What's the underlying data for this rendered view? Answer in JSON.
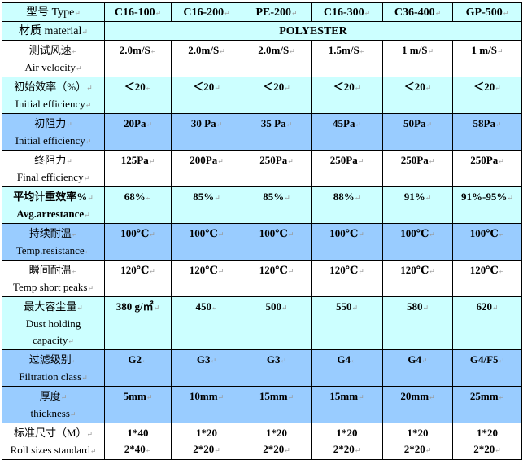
{
  "header": {
    "label": "型号  Type",
    "models": [
      "C16-100",
      "C16-200",
      "PE-200",
      "C16-300",
      "C36-400",
      "GP-500"
    ]
  },
  "material": {
    "label": "材质  material",
    "value": "POLYESTER"
  },
  "rows": [
    {
      "cn": "测试风速",
      "en": "Air velocity",
      "values": [
        "2.0m/S",
        "2.0m/S",
        "2.0m/S",
        "1.5m/S",
        "1 m/S",
        "1 m/S"
      ],
      "bg": "#ffffff",
      "h": 42
    },
    {
      "cn": "初始效率（%）",
      "en": "Initial efficiency",
      "values": [
        "＜20",
        "＜20",
        "＜20",
        "＜20",
        "＜20",
        "＜20"
      ],
      "bg": "#ccffff",
      "h": 43
    },
    {
      "cn": "初阻力",
      "en": "Initial efficiency",
      "values": [
        "20Pa",
        "30 Pa",
        "35 Pa",
        "45Pa",
        "50Pa",
        "58Pa"
      ],
      "bg": "#99ccff",
      "h": 42
    },
    {
      "cn": "终阻力",
      "en": "Final efficiency",
      "values": [
        "125Pa",
        "200Pa",
        "250Pa",
        "250Pa",
        "250Pa",
        "250Pa"
      ],
      "bg": "#ffffff",
      "h": 42
    },
    {
      "cn": "平均计重效率%",
      "en": "Avg.arrestance",
      "values": [
        "68%",
        "85%",
        "85%",
        "88%",
        "91%",
        "91%-95%"
      ],
      "bg": "#ccffff",
      "h": 43,
      "bold": true
    },
    {
      "cn": "持续耐温",
      "en": "Temp.resistance",
      "values": [
        "100℃",
        "100℃",
        "100℃",
        "100℃",
        "100℃",
        "100℃"
      ],
      "bg": "#99ccff",
      "h": 42
    },
    {
      "cn": "瞬间耐温",
      "en": "Temp short peaks",
      "values": [
        "120℃",
        "120℃",
        "120℃",
        "120℃",
        "120℃",
        "120℃"
      ],
      "bg": "#ffffff",
      "h": 42
    },
    {
      "cn": "最大容尘量",
      "en": "Dust holding capacity",
      "values": [
        "380 g/㎡",
        "450",
        "500",
        "550",
        "580",
        "620"
      ],
      "bg": "#ccffff",
      "h": 63
    },
    {
      "cn": "过滤级别",
      "en": "Filtration class",
      "values": [
        "G2",
        "G3",
        "G3",
        "G4",
        "G4",
        "G4/F5"
      ],
      "bg": "#99ccff",
      "h": 42
    },
    {
      "cn": "厚度",
      "en": "thickness",
      "values": [
        "5mm",
        "10mm",
        "15mm",
        "15mm",
        "20mm",
        "25mm"
      ],
      "bg": "#99ccff",
      "h": 42
    },
    {
      "cn": "标准尺寸（M）",
      "en": "Roll sizes standard",
      "values": [
        "1*40\n2*40",
        "1*20\n2*20",
        "1*20\n2*20",
        "1*20\n2*20",
        "1*20\n2*20",
        "1*20\n2*20"
      ],
      "bg": "#ffffff",
      "h": 44
    }
  ]
}
